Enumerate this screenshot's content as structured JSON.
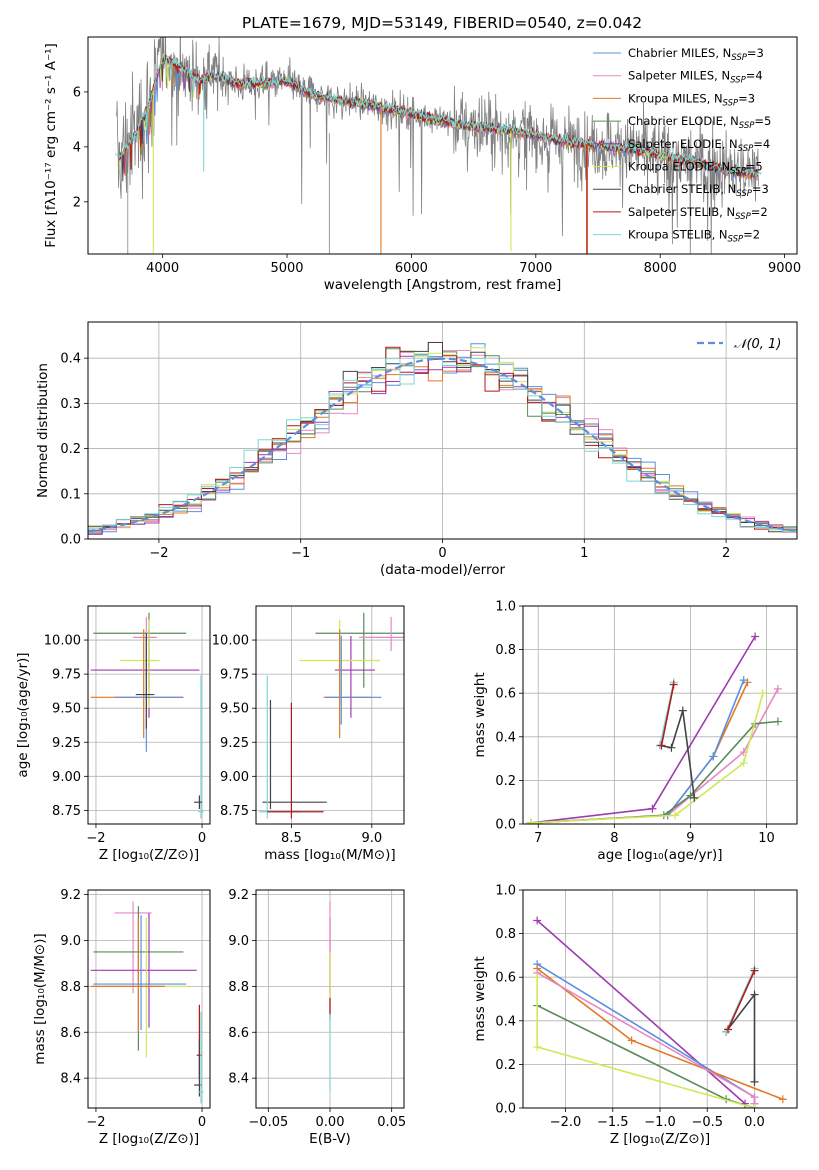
{
  "colors": {
    "Chabrier MILES": "#5b8fe0",
    "Salpeter MILES": "#e887c4",
    "Kroupa MILES": "#e07a24",
    "Chabrier ELODIE": "#5a8a5a",
    "Salpeter ELODIE": "#a03ab3",
    "Kroupa ELODIE": "#cfe858",
    "Chabrier STELIB": "#444444",
    "Salpeter STELIB": "#b21a1a",
    "Kroupa STELIB": "#7dd6d6",
    "data": "#808080",
    "normal": "#5b8fe0"
  },
  "chart_data": [
    {
      "id": "spectrum",
      "type": "line",
      "title": "PLATE=1679, MJD=53149, FIBERID=0540, z=0.042",
      "xlabel": "wavelength [Angstrom, rest frame]",
      "ylabel": "Flux [fλ10⁻¹⁷ erg cm⁻² s⁻¹ A⁻¹]",
      "xlim": [
        3400,
        9100
      ],
      "ylim": [
        0.1,
        8.0
      ],
      "xticks": [
        4000,
        5000,
        6000,
        7000,
        8000,
        9000
      ],
      "yticks": [
        2,
        4,
        6
      ],
      "grid": false,
      "legend": "top-right",
      "legend_entries": [
        "Chabrier MILES, N_SSP=3",
        "Salpeter MILES, N_SSP=4",
        "Kroupa MILES, N_SSP=3",
        "Chabrier ELODIE, N_SSP=5",
        "Salpeter ELODIE, N_SSP=4",
        "Kroupa ELODIE, N_SSP=5",
        "Chabrier STELIB, N_SSP=3",
        "Salpeter STELIB, N_SSP=2",
        "Kroupa STELIB, N_SSP=2"
      ],
      "model_continuum": {
        "x": [
          3650,
          3700,
          3800,
          3900,
          3950,
          4000,
          4100,
          4200,
          4300,
          4400,
          4500,
          4600,
          4800,
          5000,
          5200,
          5400,
          5600,
          5800,
          6000,
          6200,
          6400,
          6600,
          6800,
          7000,
          7200,
          7400,
          7600,
          7800,
          8000,
          8200,
          8400,
          8600,
          8800
        ],
        "y": [
          3.6,
          3.9,
          4.6,
          5.6,
          6.5,
          7.2,
          7.0,
          6.7,
          6.4,
          6.6,
          6.5,
          6.3,
          6.3,
          6.4,
          5.9,
          5.7,
          5.6,
          5.4,
          5.2,
          5.0,
          4.8,
          4.7,
          4.6,
          4.4,
          4.2,
          4.1,
          4.0,
          3.9,
          3.7,
          3.5,
          3.3,
          3.1,
          3.0
        ]
      },
      "dips": [
        {
          "series": "Kroupa MILES",
          "x": 5755,
          "y": 0.1
        },
        {
          "series": "Kroupa MILES",
          "x": 7415,
          "y": 0.1
        },
        {
          "series": "Salpeter STELIB",
          "x": 7410,
          "y": 0.1
        },
        {
          "series": "Kroupa ELODIE",
          "x": 3925,
          "y": 0.1
        },
        {
          "series": "Kroupa ELODIE",
          "x": 6800,
          "y": 0.2
        },
        {
          "series": "Kroupa STELIB",
          "x": 4330,
          "y": 3.1
        }
      ]
    },
    {
      "id": "residuals",
      "type": "line",
      "xlabel": "(data-model)/error",
      "ylabel": "Normed distribution",
      "xlim": [
        -2.5,
        2.5
      ],
      "ylim": [
        0.0,
        0.48
      ],
      "xticks": [
        -2,
        -1,
        0,
        1,
        2
      ],
      "yticks": [
        0.0,
        0.1,
        0.2,
        0.3,
        0.4
      ],
      "grid": true,
      "legend": "top-right",
      "legend_entries": [
        "𝒩(0, 1)"
      ],
      "bin_width": 0.1
    },
    {
      "id": "age-vs-Z",
      "type": "scatter",
      "xlabel": "Z [log₁₀(Z/Z⊙)]",
      "ylabel": "age  [log₁₀(age/yr)]",
      "xlim": [
        -2.15,
        0.15
      ],
      "ylim": [
        8.65,
        10.25
      ],
      "xticks": [
        -2,
        0
      ],
      "yticks": [
        8.75,
        9.0,
        9.25,
        9.5,
        9.75,
        10.0
      ],
      "grid": true,
      "points": [
        {
          "series": "Chabrier ELODIE",
          "x": -1.0,
          "y": 10.05,
          "xerr": [
            1.05,
            0.7
          ],
          "yerr": [
            0.4,
            0.15
          ]
        },
        {
          "series": "Salpeter MILES",
          "x": -1.05,
          "y": 10.02,
          "xerr": [
            0.25,
            0.2
          ],
          "yerr": [
            0.25,
            0.15
          ]
        },
        {
          "series": "Salpeter ELODIE",
          "x": -1.0,
          "y": 9.78,
          "xerr": [
            1.1,
            0.95
          ],
          "yerr": [
            0.35,
            0.3
          ]
        },
        {
          "series": "Kroupa ELODIE",
          "x": -1.0,
          "y": 9.85,
          "xerr": [
            0.55,
            0.2
          ],
          "yerr": [
            0.35,
            0.3
          ]
        },
        {
          "series": "Kroupa MILES",
          "x": -1.1,
          "y": 9.58,
          "xerr": [
            1.0,
            0.75
          ],
          "yerr": [
            0.3,
            0.5
          ]
        },
        {
          "series": "Chabrier MILES",
          "x": -1.05,
          "y": 9.58,
          "xerr": [
            0.6,
            0.7
          ],
          "yerr": [
            0.4,
            0.45
          ]
        },
        {
          "series": "Chabrier STELIB",
          "x": -1.05,
          "y": 9.6,
          "xerr": [
            0.2,
            0.15
          ],
          "yerr": [
            0.25,
            0.45
          ]
        },
        {
          "series": "Kroupa STELIB",
          "x": -0.02,
          "y": 8.74,
          "xerr": [
            0.05,
            0.05
          ],
          "yerr": [
            0.05,
            1.0
          ]
        },
        {
          "series": "Chabrier STELIB",
          "x": -0.05,
          "y": 8.81,
          "xerr": [
            0.1,
            0.05
          ],
          "yerr": [
            0.05,
            0.05
          ]
        }
      ]
    },
    {
      "id": "age-vs-mass",
      "type": "scatter",
      "xlabel": "mass [log₁₀(M/M⊙)]",
      "ylabel": "",
      "xlim": [
        8.28,
        9.2
      ],
      "ylim": [
        8.65,
        10.25
      ],
      "xticks": [
        8.5,
        9.0
      ],
      "yticks": [
        8.75,
        9.0,
        9.25,
        9.5,
        9.75,
        10.0
      ],
      "grid": true,
      "points": [
        {
          "series": "Chabrier ELODIE",
          "x": 8.95,
          "y": 10.05,
          "xerr": [
            0.3,
            0.3
          ],
          "yerr": [
            0.4,
            0.15
          ]
        },
        {
          "series": "Salpeter MILES",
          "x": 9.12,
          "y": 10.02,
          "xerr": [
            0.2,
            0.15
          ],
          "yerr": [
            0.1,
            0.15
          ]
        },
        {
          "series": "Salpeter ELODIE",
          "x": 8.87,
          "y": 9.78,
          "xerr": [
            0.1,
            0.15
          ],
          "yerr": [
            0.35,
            0.25
          ]
        },
        {
          "series": "Kroupa ELODIE",
          "x": 8.8,
          "y": 9.85,
          "xerr": [
            0.25,
            0.25
          ],
          "yerr": [
            0.25,
            0.3
          ]
        },
        {
          "series": "Kroupa MILES",
          "x": 8.8,
          "y": 9.58,
          "xerr": [
            0.1,
            0.2
          ],
          "yerr": [
            0.3,
            0.5
          ]
        },
        {
          "series": "Chabrier MILES",
          "x": 8.81,
          "y": 9.58,
          "xerr": [
            0.1,
            0.25
          ],
          "yerr": [
            0.2,
            0.45
          ]
        },
        {
          "series": "Chabrier STELIB",
          "x": 8.37,
          "y": 8.81,
          "xerr": [
            0.05,
            0.35
          ],
          "yerr": [
            0.05,
            0.75
          ]
        },
        {
          "series": "Kroupa STELIB",
          "x": 8.35,
          "y": 8.74,
          "xerr": [
            0.05,
            0.2
          ],
          "yerr": [
            0.05,
            1.0
          ]
        },
        {
          "series": "Salpeter STELIB",
          "x": 8.5,
          "y": 8.74,
          "xerr": [
            0.15,
            0.2
          ],
          "yerr": [
            0.05,
            0.8
          ]
        }
      ]
    },
    {
      "id": "mass-weight-vs-age",
      "type": "line",
      "xlabel": "age  [log₁₀(age/yr)]",
      "ylabel": "mass weight",
      "xlim": [
        6.8,
        10.4
      ],
      "ylim": [
        0.0,
        1.0
      ],
      "xticks": [
        7,
        8,
        9,
        10
      ],
      "yticks": [
        0.0,
        0.2,
        0.4,
        0.6,
        0.8,
        1.0
      ],
      "grid": true,
      "series": [
        {
          "name": "Salpeter ELODIE",
          "x": [
            6.9,
            8.5,
            9.85
          ],
          "y": [
            0.005,
            0.07,
            0.86
          ]
        },
        {
          "name": "Salpeter MILES",
          "x": [
            6.9,
            8.7,
            9.7,
            10.15
          ],
          "y": [
            0.005,
            0.04,
            0.33,
            0.62
          ]
        },
        {
          "name": "Kroupa MILES",
          "x": [
            8.7,
            9.3,
            9.75
          ],
          "y": [
            0.04,
            0.31,
            0.65
          ]
        },
        {
          "name": "Chabrier MILES",
          "x": [
            8.7,
            9.3,
            9.7
          ],
          "y": [
            0.04,
            0.31,
            0.66
          ]
        },
        {
          "name": "Chabrier ELODIE",
          "x": [
            6.9,
            8.65,
            9.0,
            9.85,
            10.15
          ],
          "y": [
            0.005,
            0.04,
            0.13,
            0.46,
            0.47
          ]
        },
        {
          "name": "Kroupa ELODIE",
          "x": [
            6.9,
            8.8,
            9.7,
            9.95
          ],
          "y": [
            0.005,
            0.04,
            0.28,
            0.6
          ]
        },
        {
          "name": "Chabrier STELIB",
          "x": [
            8.6,
            8.75,
            8.9,
            9.05
          ],
          "y": [
            0.36,
            0.35,
            0.52,
            0.12
          ]
        },
        {
          "name": "Kroupa STELIB",
          "x": [
            8.6,
            8.78
          ],
          "y": [
            0.36,
            0.65
          ]
        },
        {
          "name": "Salpeter STELIB",
          "x": [
            8.62,
            8.78
          ],
          "y": [
            0.36,
            0.64
          ]
        }
      ]
    },
    {
      "id": "mass-vs-Z",
      "type": "scatter",
      "xlabel": "Z [log₁₀(Z/Z⊙)]",
      "ylabel": "mass [log₁₀(M/M⊙)]",
      "xlim": [
        -2.15,
        0.15
      ],
      "ylim": [
        8.27,
        9.22
      ],
      "xticks": [
        -2,
        0
      ],
      "yticks": [
        8.4,
        8.6,
        8.8,
        9.0,
        9.2
      ],
      "grid": true,
      "points": [
        {
          "series": "Salpeter MILES",
          "x": -1.3,
          "y": 9.12,
          "xerr": [
            0.35,
            0.35
          ],
          "yerr": [
            0.35,
            0.05
          ]
        },
        {
          "series": "Chabrier ELODIE",
          "x": -1.2,
          "y": 8.95,
          "xerr": [
            0.85,
            0.85
          ],
          "yerr": [
            0.43,
            0.2
          ]
        },
        {
          "series": "Salpeter ELODIE",
          "x": -1.0,
          "y": 8.87,
          "xerr": [
            1.1,
            0.9
          ],
          "yerr": [
            0.25,
            0.25
          ]
        },
        {
          "series": "Kroupa ELODIE",
          "x": -1.05,
          "y": 8.8,
          "xerr": [
            1.0,
            0.8
          ],
          "yerr": [
            0.31,
            0.3
          ]
        },
        {
          "series": "Kroupa MILES",
          "x": -1.2,
          "y": 8.8,
          "xerr": [
            0.9,
            0.5
          ],
          "yerr": [
            0.2,
            0.3
          ]
        },
        {
          "series": "Chabrier MILES",
          "x": -1.15,
          "y": 8.81,
          "xerr": [
            0.9,
            0.85
          ],
          "yerr": [
            0.2,
            0.3
          ]
        },
        {
          "series": "Salpeter STELIB",
          "x": -0.05,
          "y": 8.5,
          "xerr": [
            0.05,
            0.05
          ],
          "yerr": [
            0.1,
            0.22
          ]
        },
        {
          "series": "Chabrier STELIB",
          "x": -0.05,
          "y": 8.37,
          "xerr": [
            0.1,
            0.05
          ],
          "yerr": [
            0.05,
            0.2
          ]
        },
        {
          "series": "Kroupa STELIB",
          "x": -0.02,
          "y": 8.34,
          "xerr": [
            0.05,
            0.05
          ],
          "yerr": [
            0.05,
            0.35
          ]
        }
      ]
    },
    {
      "id": "mass-vs-EBV",
      "type": "scatter",
      "xlabel": "E(B-V)",
      "ylabel": "",
      "xlim": [
        -0.06,
        0.06
      ],
      "ylim": [
        8.27,
        9.22
      ],
      "xticks": [
        -0.05,
        0.0,
        0.05
      ],
      "yticks": [
        8.4,
        8.6,
        8.8,
        9.0,
        9.2
      ],
      "grid": true,
      "points": [
        {
          "series": "Salpeter ELODIE",
          "x": 0.0,
          "y": 8.87,
          "yerr": [
            0.2,
            0.23
          ]
        },
        {
          "series": "Salpeter MILES",
          "x": 0.0,
          "y": 9.12,
          "yerr": [
            0.35,
            0.05
          ]
        },
        {
          "series": "Kroupa ELODIE",
          "x": 0.0,
          "y": 8.8,
          "yerr": [
            0.2,
            0.15
          ]
        },
        {
          "series": "Salpeter STELIB",
          "x": 0.0,
          "y": 8.7,
          "yerr": [
            0.05,
            0.05
          ]
        },
        {
          "series": "Kroupa STELIB",
          "x": 0.0,
          "y": 8.5,
          "yerr": [
            0.16,
            0.18
          ]
        }
      ]
    },
    {
      "id": "mass-weight-vs-Z",
      "type": "line",
      "xlabel": "Z [log₁₀(Z/Z⊙)]",
      "ylabel": "mass weight",
      "xlim": [
        -2.45,
        0.45
      ],
      "ylim": [
        0.0,
        1.0
      ],
      "xticks": [
        -2.0,
        -1.5,
        -1.0,
        -0.5,
        0.0
      ],
      "yticks": [
        0.0,
        0.2,
        0.4,
        0.6,
        0.8,
        1.0
      ],
      "grid": true,
      "series": [
        {
          "name": "Salpeter ELODIE",
          "x": [
            -2.3,
            -0.1
          ],
          "y": [
            0.86,
            0.02
          ]
        },
        {
          "name": "Chabrier MILES",
          "x": [
            -2.3,
            0.0,
            0.0
          ],
          "y": [
            0.66,
            0.05,
            0.02
          ]
        },
        {
          "name": "Kroupa MILES",
          "x": [
            -2.3,
            -1.3,
            0.3
          ],
          "y": [
            0.64,
            0.31,
            0.04
          ]
        },
        {
          "name": "Salpeter MILES",
          "x": [
            -2.3,
            0.0,
            0.0
          ],
          "y": [
            0.62,
            0.05,
            0.02
          ]
        },
        {
          "name": "Chabrier ELODIE",
          "x": [
            -2.3,
            -0.3,
            0.0
          ],
          "y": [
            0.47,
            0.04,
            0.0
          ]
        },
        {
          "name": "Kroupa ELODIE",
          "x": [
            -2.3,
            -2.3,
            0.0
          ],
          "y": [
            0.6,
            0.28,
            0.0
          ]
        },
        {
          "name": "Chabrier STELIB",
          "x": [
            -0.3,
            0.0,
            0.0
          ],
          "y": [
            0.35,
            0.52,
            0.12
          ]
        },
        {
          "name": "Kroupa STELIB",
          "x": [
            -0.3,
            0.0
          ],
          "y": [
            0.35,
            0.64
          ]
        },
        {
          "name": "Salpeter STELIB",
          "x": [
            -0.28,
            0.0
          ],
          "y": [
            0.36,
            0.63
          ]
        }
      ]
    }
  ]
}
